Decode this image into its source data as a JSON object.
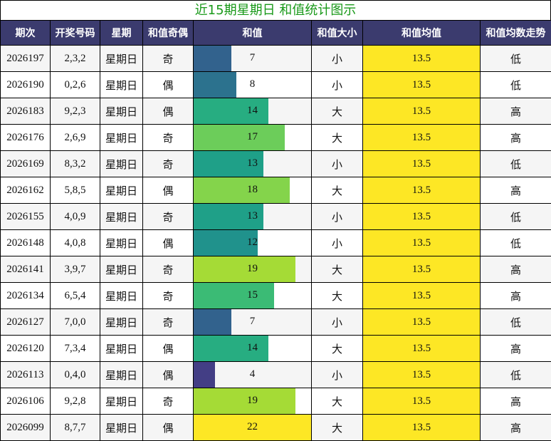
{
  "title": "近15期星期日 和值统计图示",
  "headers": [
    "期次",
    "开奖号码",
    "星期",
    "和值奇偶",
    "和值",
    "和值大小",
    "和值均值",
    "和值均数走势"
  ],
  "colors": {
    "header_bg": "#3b3b6e",
    "title_text": "#1a9a1a",
    "avg_bg": "#fde725"
  },
  "chart_data": {
    "type": "table",
    "title": "近15期星期日 和值统计图示",
    "sum_bar_max": 22,
    "rows": [
      {
        "period": "2026197",
        "numbers": "2,3,2",
        "weekday": "星期日",
        "parity": "奇",
        "sum": 7,
        "size": "小",
        "avg": "13.5",
        "trend": "低",
        "color": "#32628d"
      },
      {
        "period": "2026190",
        "numbers": "0,2,6",
        "weekday": "星期日",
        "parity": "偶",
        "sum": 8,
        "size": "小",
        "avg": "13.5",
        "trend": "低",
        "color": "#2c728e"
      },
      {
        "period": "2026183",
        "numbers": "9,2,3",
        "weekday": "星期日",
        "parity": "偶",
        "sum": 14,
        "size": "大",
        "avg": "13.5",
        "trend": "高",
        "color": "#27ad81"
      },
      {
        "period": "2026176",
        "numbers": "2,6,9",
        "weekday": "星期日",
        "parity": "奇",
        "sum": 17,
        "size": "大",
        "avg": "13.5",
        "trend": "高",
        "color": "#6ccd5a"
      },
      {
        "period": "2026169",
        "numbers": "8,3,2",
        "weekday": "星期日",
        "parity": "奇",
        "sum": 13,
        "size": "小",
        "avg": "13.5",
        "trend": "低",
        "color": "#1fa088"
      },
      {
        "period": "2026162",
        "numbers": "5,8,5",
        "weekday": "星期日",
        "parity": "偶",
        "sum": 18,
        "size": "大",
        "avg": "13.5",
        "trend": "高",
        "color": "#84d44b"
      },
      {
        "period": "2026155",
        "numbers": "4,0,9",
        "weekday": "星期日",
        "parity": "奇",
        "sum": 13,
        "size": "小",
        "avg": "13.5",
        "trend": "低",
        "color": "#1fa088"
      },
      {
        "period": "2026148",
        "numbers": "4,0,8",
        "weekday": "星期日",
        "parity": "偶",
        "sum": 12,
        "size": "小",
        "avg": "13.5",
        "trend": "低",
        "color": "#20928c"
      },
      {
        "period": "2026141",
        "numbers": "3,9,7",
        "weekday": "星期日",
        "parity": "奇",
        "sum": 19,
        "size": "大",
        "avg": "13.5",
        "trend": "高",
        "color": "#a5db36"
      },
      {
        "period": "2026134",
        "numbers": "6,5,4",
        "weekday": "星期日",
        "parity": "奇",
        "sum": 15,
        "size": "大",
        "avg": "13.5",
        "trend": "高",
        "color": "#3bbb75"
      },
      {
        "period": "2026127",
        "numbers": "7,0,0",
        "weekday": "星期日",
        "parity": "奇",
        "sum": 7,
        "size": "小",
        "avg": "13.5",
        "trend": "低",
        "color": "#32628d"
      },
      {
        "period": "2026120",
        "numbers": "7,3,4",
        "weekday": "星期日",
        "parity": "偶",
        "sum": 14,
        "size": "大",
        "avg": "13.5",
        "trend": "高",
        "color": "#27ad81"
      },
      {
        "period": "2026113",
        "numbers": "0,4,0",
        "weekday": "星期日",
        "parity": "偶",
        "sum": 4,
        "size": "小",
        "avg": "13.5",
        "trend": "低",
        "color": "#433e85"
      },
      {
        "period": "2026106",
        "numbers": "9,2,8",
        "weekday": "星期日",
        "parity": "奇",
        "sum": 19,
        "size": "大",
        "avg": "13.5",
        "trend": "高",
        "color": "#a5db36"
      },
      {
        "period": "2026099",
        "numbers": "8,7,7",
        "weekday": "星期日",
        "parity": "偶",
        "sum": 22,
        "size": "大",
        "avg": "13.5",
        "trend": "高",
        "color": "#fde725"
      }
    ]
  }
}
